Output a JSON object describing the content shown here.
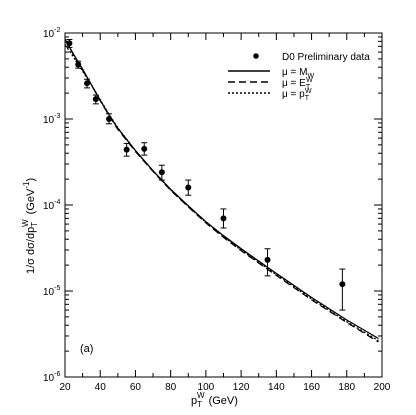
{
  "chart_data": {
    "type": "line",
    "panel_label": "(a)",
    "xlabel": {
      "main": "p",
      "sub": "T",
      "sup": "W",
      "unit": "(GeV)"
    },
    "ylabel": {
      "main": "1/σ dσ/dp",
      "sub": "T",
      "sup": "W",
      "unit": "(GeV",
      "unit_sup": "-1",
      "unit_end": ")"
    },
    "xlim": [
      20,
      200
    ],
    "ylim": [
      1e-06,
      0.01
    ],
    "yscale": "log",
    "grid": false,
    "legend_position": "top-right",
    "x_ticks": [
      {
        "value": 20,
        "label": "20"
      },
      {
        "value": 40,
        "label": "40"
      },
      {
        "value": 60,
        "label": "60"
      },
      {
        "value": 80,
        "label": "80"
      },
      {
        "value": 100,
        "label": "100"
      },
      {
        "value": 120,
        "label": "120"
      },
      {
        "value": 140,
        "label": "140"
      },
      {
        "value": 160,
        "label": "160"
      },
      {
        "value": 180,
        "label": "180"
      },
      {
        "value": 200,
        "label": "200"
      }
    ],
    "y_ticks": [
      {
        "value": 1e-06,
        "base": "10",
        "exp": "-6"
      },
      {
        "value": 1e-05,
        "base": "10",
        "exp": "-5"
      },
      {
        "value": 0.0001,
        "base": "10",
        "exp": "-4"
      },
      {
        "value": 0.001,
        "base": "10",
        "exp": "-3"
      },
      {
        "value": 0.01,
        "base": "10",
        "exp": "-2"
      }
    ],
    "data_series": {
      "name": "D0 Preliminary data",
      "points": [
        {
          "x": 22.5,
          "y": 0.0076,
          "ylo": 0.0068,
          "yhi": 0.0084
        },
        {
          "x": 27.5,
          "y": 0.0043,
          "ylo": 0.0039,
          "yhi": 0.0047
        },
        {
          "x": 32.5,
          "y": 0.0026,
          "ylo": 0.0023,
          "yhi": 0.0029
        },
        {
          "x": 37.5,
          "y": 0.0017,
          "ylo": 0.0015,
          "yhi": 0.0019
        },
        {
          "x": 45,
          "y": 0.001,
          "ylo": 0.00088,
          "yhi": 0.00115
        },
        {
          "x": 55,
          "y": 0.00044,
          "ylo": 0.00037,
          "yhi": 0.00052
        },
        {
          "x": 65,
          "y": 0.00045,
          "ylo": 0.00038,
          "yhi": 0.00053
        },
        {
          "x": 75,
          "y": 0.00024,
          "ylo": 0.000195,
          "yhi": 0.00029
        },
        {
          "x": 90,
          "y": 0.00016,
          "ylo": 0.00013,
          "yhi": 0.000195
        },
        {
          "x": 110,
          "y": 7e-05,
          "ylo": 5.4e-05,
          "yhi": 9e-05
        },
        {
          "x": 135,
          "y": 2.3e-05,
          "ylo": 1.5e-05,
          "yhi": 3.1e-05
        },
        {
          "x": 177.5,
          "y": 1.2e-05,
          "ylo": 6e-06,
          "yhi": 1.8e-05
        }
      ]
    },
    "series": [
      {
        "legend": {
          "main": "μ = M",
          "sub": "W"
        },
        "style": "solid",
        "x": [
          20,
          22.5,
          25,
          30,
          35,
          40,
          45,
          50,
          60,
          70,
          80,
          90,
          100,
          110,
          120,
          140,
          160,
          180,
          198
        ],
        "y": [
          0.0085,
          0.0069,
          0.0056,
          0.0038,
          0.0025,
          0.00165,
          0.00112,
          0.00078,
          0.00043,
          0.00025,
          0.000152,
          9.8e-05,
          6.4e-05,
          4.4e-05,
          3.1e-05,
          1.6e-05,
          8.4e-06,
          4.6e-06,
          2.8e-06
        ]
      },
      {
        "legend": {
          "main": "μ = E",
          "sub": "T",
          "sup": "W"
        },
        "style": "dashed",
        "x": [
          20,
          22.5,
          25,
          30,
          35,
          40,
          45,
          50,
          60,
          70,
          80,
          90,
          100,
          110,
          120,
          140,
          160,
          180,
          198
        ],
        "y": [
          0.0083,
          0.0068,
          0.0055,
          0.0037,
          0.0025,
          0.00163,
          0.0011,
          0.00076,
          0.00042,
          0.000245,
          0.000148,
          9.5e-05,
          6.2e-05,
          4.2e-05,
          2.95e-05,
          1.52e-05,
          7.9e-06,
          4.3e-06,
          2.55e-06
        ]
      },
      {
        "legend": {
          "main": "μ = p",
          "sub": "T",
          "sup": "W"
        },
        "style": "dotted",
        "x": [
          20,
          22.5,
          25,
          30,
          35,
          40,
          45,
          50,
          60,
          70,
          80,
          90,
          100,
          110,
          120,
          140,
          160,
          180,
          198
        ],
        "y": [
          0.0073,
          0.0062,
          0.0052,
          0.0036,
          0.0025,
          0.00168,
          0.00114,
          0.00079,
          0.00043,
          0.000248,
          0.00015,
          9.6e-05,
          6.3e-05,
          4.3e-05,
          3e-05,
          1.55e-05,
          8.1e-06,
          4.4e-06,
          2.65e-06
        ]
      }
    ]
  }
}
